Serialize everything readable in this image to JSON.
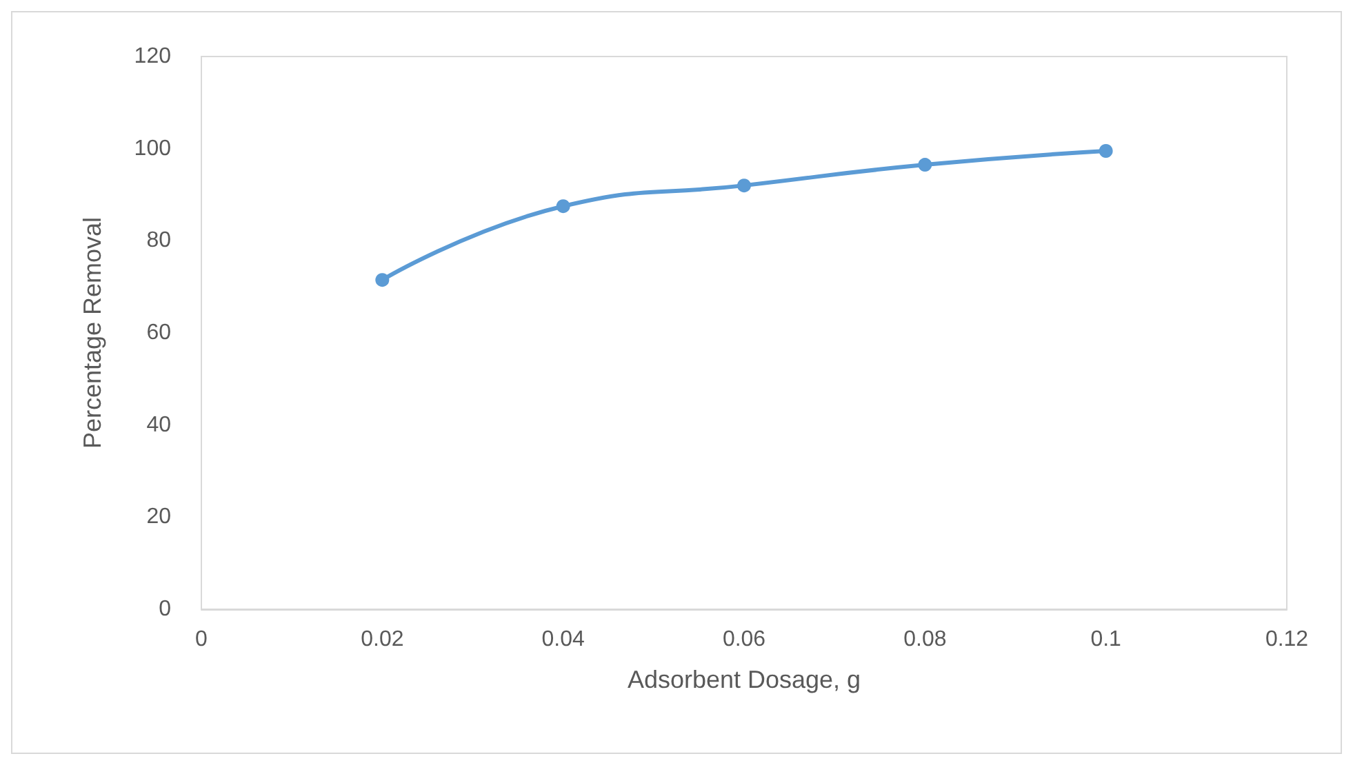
{
  "chart_data": {
    "type": "line",
    "xlabel": "Adsorbent Dosage, g",
    "ylabel": "Percentage Removal",
    "x": [
      0.02,
      0.04,
      0.06,
      0.08,
      0.1
    ],
    "series": [
      {
        "color": "#5b9bd5",
        "values": [
          71.5,
          87.5,
          92,
          96.5,
          99.5
        ]
      }
    ],
    "xlim": [
      0,
      0.12
    ],
    "xticks": [
      0,
      0.02,
      0.04,
      0.06,
      0.08,
      0.1,
      0.12
    ],
    "ylim": [
      0,
      120
    ],
    "yticks": [
      0,
      20,
      40,
      60,
      80,
      100,
      120
    ],
    "grid": false,
    "marker": "circle",
    "line_style": "solid"
  }
}
